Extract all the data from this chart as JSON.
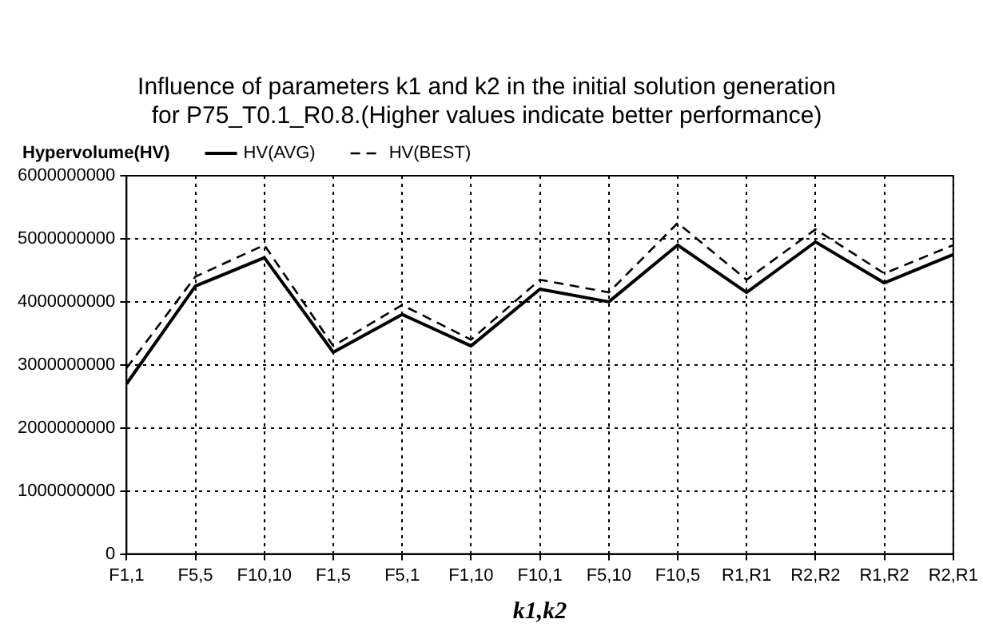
{
  "chart_data": {
    "type": "line",
    "title": [
      "Influence of parameters k1 and k2 in the initial solution generation",
      "for P75_T0.1_R0.8.(Higher values indicate better performance)"
    ],
    "xlabel": "k1,k2",
    "ylabel": "Hypervolume(HV)",
    "categories": [
      "F1,1",
      "F5,5",
      "F10,10",
      "F1,5",
      "F5,1",
      "F1,10",
      "F10,1",
      "F5,10",
      "F10,5",
      "R1,R1",
      "R2,R2",
      "R1,R2",
      "R2,R1"
    ],
    "series": [
      {
        "name": "HV(AVG)",
        "color": "#000000",
        "line_style": "solid",
        "values": [
          2700000000,
          4250000000,
          4700000000,
          3200000000,
          3800000000,
          3300000000,
          4200000000,
          4000000000,
          4900000000,
          4150000000,
          4950000000,
          4300000000,
          4750000000
        ]
      },
      {
        "name": "HV(BEST)",
        "color": "#000000",
        "line_style": "dashed",
        "values": [
          2950000000,
          4400000000,
          4900000000,
          3300000000,
          3950000000,
          3400000000,
          4350000000,
          4150000000,
          5250000000,
          4350000000,
          5150000000,
          4450000000,
          4900000000
        ]
      }
    ],
    "ylim": [
      0,
      6000000000
    ],
    "yticks": [
      0,
      1000000000,
      2000000000,
      3000000000,
      4000000000,
      5000000000,
      6000000000
    ],
    "grid": true,
    "legend": "top left",
    "marker": "none"
  }
}
